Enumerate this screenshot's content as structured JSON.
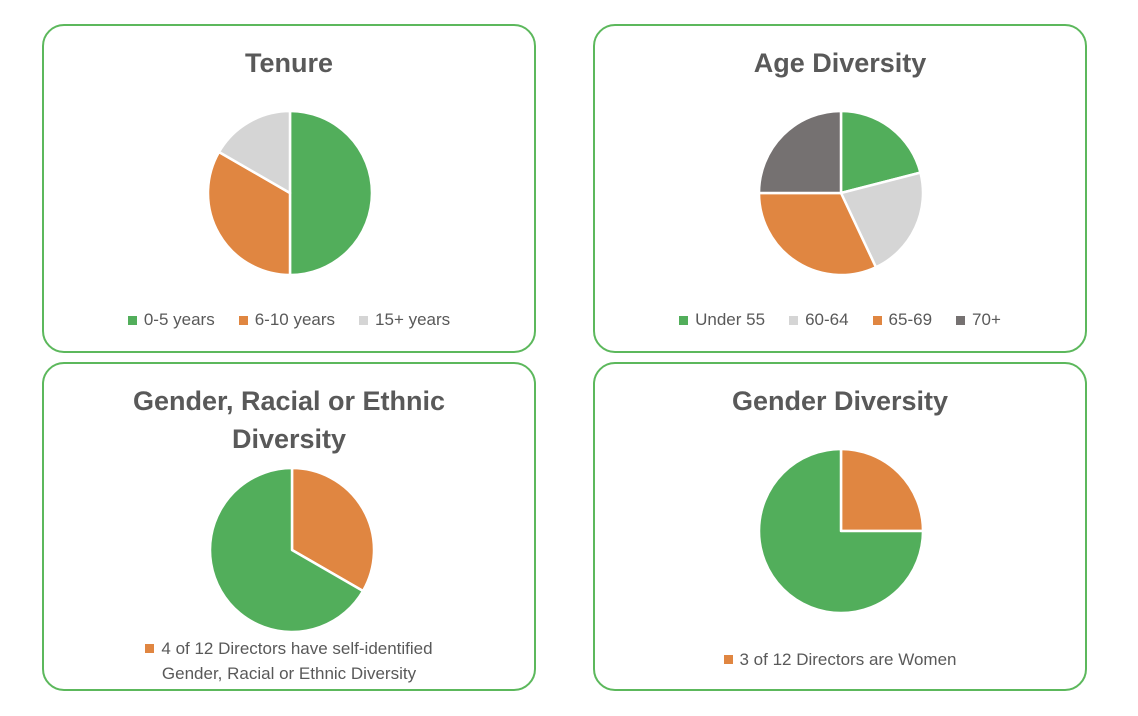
{
  "colors": {
    "green": "#52ae5b",
    "orange": "#e08641",
    "light_gray": "#d5d5d5",
    "dark_gray": "#757171",
    "border": "#5cb85c"
  },
  "chart_data": [
    {
      "type": "pie",
      "title": "Tenure",
      "categories": [
        "0-5 years",
        "6-10 years",
        "15+ years"
      ],
      "values": [
        6,
        4,
        2
      ],
      "colors": [
        "#52ae5b",
        "#e08641",
        "#d5d5d5"
      ],
      "legend_position": "bottom"
    },
    {
      "type": "pie",
      "title": "Age Diversity",
      "categories": [
        "Under 55",
        "60-64",
        "65-69",
        "70+"
      ],
      "values": [
        21,
        22,
        32,
        25
      ],
      "colors": [
        "#52ae5b",
        "#d5d5d5",
        "#e08641",
        "#757171"
      ],
      "legend_position": "bottom"
    },
    {
      "type": "pie",
      "title": "Gender, Racial or Ethnic Diversity",
      "title_lines": [
        "Gender, Racial or Ethnic",
        "Diversity"
      ],
      "categories": [
        "4 of 12 Directors have self-identified Gender, Racial or Ethnic Diversity",
        ""
      ],
      "values": [
        4,
        8
      ],
      "colors": [
        "#e08641",
        "#52ae5b"
      ],
      "legend": [
        "4 of 12 Directors have self-identified",
        "Gender, Racial or Ethnic Diversity"
      ],
      "legend_position": "bottom"
    },
    {
      "type": "pie",
      "title": "Gender Diversity",
      "categories": [
        "3 of 12 Directors are Women",
        ""
      ],
      "values": [
        3,
        9
      ],
      "colors": [
        "#e08641",
        "#52ae5b"
      ],
      "legend": [
        "3 of 12 Directors are Women"
      ],
      "legend_position": "bottom"
    }
  ]
}
